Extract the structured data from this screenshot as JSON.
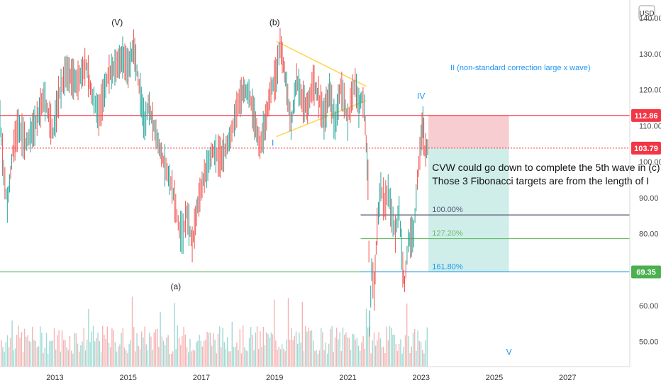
{
  "chart_data": {
    "type": "line",
    "currency": "USD",
    "x_axis": {
      "range": [
        2011.5,
        2028.7
      ],
      "ticks": [
        {
          "value": 2013,
          "label": "2013"
        },
        {
          "value": 2015,
          "label": "2015"
        },
        {
          "value": 2017,
          "label": "2017"
        },
        {
          "value": 2019,
          "label": "2019"
        },
        {
          "value": 2021,
          "label": "2021"
        },
        {
          "value": 2023,
          "label": "2023"
        },
        {
          "value": 2025,
          "label": "2025"
        },
        {
          "value": 2027,
          "label": "2027"
        }
      ]
    },
    "y_axis": {
      "range": [
        43,
        145
      ],
      "ticks": [
        {
          "value": 140,
          "label": "140.00"
        },
        {
          "value": 130,
          "label": "130.00"
        },
        {
          "value": 120,
          "label": "120.00"
        },
        {
          "value": 110,
          "label": "110.00"
        },
        {
          "value": 100,
          "label": "100.00"
        },
        {
          "value": 90,
          "label": "90.00"
        },
        {
          "value": 80,
          "label": "80.00"
        },
        {
          "value": 70,
          "label": "70.00"
        },
        {
          "value": 60,
          "label": "60.00"
        },
        {
          "value": 50,
          "label": "50.00"
        }
      ]
    },
    "price_path": [
      [
        2011.5,
        112
      ],
      [
        2011.6,
        97
      ],
      [
        2011.7,
        88
      ],
      [
        2011.85,
        103
      ],
      [
        2012.0,
        110
      ],
      [
        2012.2,
        105
      ],
      [
        2012.45,
        110
      ],
      [
        2012.7,
        118
      ],
      [
        2012.95,
        108
      ],
      [
        2013.1,
        118
      ],
      [
        2013.3,
        125
      ],
      [
        2013.6,
        122
      ],
      [
        2013.85,
        127
      ],
      [
        2014.0,
        119
      ],
      [
        2014.2,
        113
      ],
      [
        2014.45,
        124
      ],
      [
        2014.7,
        127
      ],
      [
        2014.85,
        129
      ],
      [
        2015.0,
        126
      ],
      [
        2015.15,
        132
      ],
      [
        2015.3,
        121
      ],
      [
        2015.45,
        110
      ],
      [
        2015.55,
        116
      ],
      [
        2015.7,
        110
      ],
      [
        2015.85,
        104
      ],
      [
        2016.0,
        99
      ],
      [
        2016.2,
        93
      ],
      [
        2016.4,
        81
      ],
      [
        2016.5,
        80
      ],
      [
        2016.6,
        86
      ],
      [
        2016.75,
        77
      ],
      [
        2016.9,
        88
      ],
      [
        2017.05,
        95
      ],
      [
        2017.3,
        103
      ],
      [
        2017.55,
        101
      ],
      [
        2017.8,
        107
      ],
      [
        2018.0,
        116
      ],
      [
        2018.15,
        120
      ],
      [
        2018.3,
        119
      ],
      [
        2018.45,
        112
      ],
      [
        2018.6,
        104
      ],
      [
        2018.75,
        111
      ],
      [
        2018.9,
        120
      ],
      [
        2019.05,
        124
      ],
      [
        2019.15,
        133
      ],
      [
        2019.3,
        123
      ],
      [
        2019.45,
        110
      ],
      [
        2019.6,
        123
      ],
      [
        2019.75,
        117
      ],
      [
        2019.9,
        115
      ],
      [
        2020.05,
        122
      ],
      [
        2020.2,
        118
      ],
      [
        2020.35,
        112
      ],
      [
        2020.5,
        120
      ],
      [
        2020.65,
        110
      ],
      [
        2020.8,
        121
      ],
      [
        2020.9,
        117
      ],
      [
        2021.0,
        111
      ],
      [
        2021.1,
        118
      ],
      [
        2021.2,
        122
      ],
      [
        2021.3,
        115
      ],
      [
        2021.38,
        118
      ],
      [
        2021.45,
        115
      ],
      [
        2021.5,
        105
      ],
      [
        2021.55,
        95
      ],
      [
        2021.6,
        55
      ],
      [
        2021.65,
        70
      ],
      [
        2021.72,
        64
      ],
      [
        2021.8,
        82
      ],
      [
        2021.9,
        93
      ],
      [
        2022.0,
        88
      ],
      [
        2022.1,
        92
      ],
      [
        2022.2,
        85
      ],
      [
        2022.3,
        80
      ],
      [
        2022.4,
        87
      ],
      [
        2022.5,
        70
      ],
      [
        2022.55,
        66
      ],
      [
        2022.65,
        78
      ],
      [
        2022.8,
        80
      ],
      [
        2022.9,
        95
      ],
      [
        2023.0,
        106
      ],
      [
        2023.05,
        111
      ],
      [
        2023.1,
        103
      ],
      [
        2023.18,
        104
      ]
    ],
    "horizontal_levels": [
      {
        "value": 112.86,
        "label": "112.86",
        "color": "#f23645"
      },
      {
        "value": 103.79,
        "label": "103.79",
        "color": "#f23645"
      },
      {
        "value": 69.35,
        "label": "69.35",
        "color": "#4caf50"
      }
    ],
    "fib_targets": [
      {
        "value": 85.2,
        "label": "100.00%",
        "color": "#555577"
      },
      {
        "value": 78.6,
        "label": "127.20%",
        "color": "#66bb6a"
      },
      {
        "value": 69.35,
        "label": "161.80%",
        "color": "#2196f3"
      }
    ],
    "position": {
      "entry": 103.79,
      "stop": 112.86,
      "target": 69.35,
      "risk_color": "#f8cdd1",
      "reward_color": "#cfeee9"
    },
    "triangle": {
      "color": "#ffd54f",
      "upper": [
        [
          2019.05,
          133.5
        ],
        [
          2021.5,
          121
        ]
      ],
      "lower": [
        [
          2019.05,
          107
        ],
        [
          2021.5,
          117
        ]
      ]
    },
    "wave_labels": [
      {
        "text": "(V)",
        "x": 2014.7,
        "y": 138,
        "color": "#222222"
      },
      {
        "text": "(b)",
        "x": 2019.0,
        "y": 138,
        "color": "#222222"
      },
      {
        "text": "I",
        "x": 2018.95,
        "y": 104.5,
        "color": "#2196f3"
      },
      {
        "text": "II (non-standard correction large x wave)",
        "x": 2023.8,
        "y": 125.5,
        "color": "#2196f3"
      },
      {
        "text": "IV",
        "x": 2023.0,
        "y": 117.5,
        "color": "#2196f3"
      },
      {
        "text": "(a)",
        "x": 2016.3,
        "y": 64.5,
        "color": "#222222"
      },
      {
        "text": "V",
        "x": 2025.4,
        "y": 46.3,
        "color": "#2196f3"
      }
    ],
    "annotation": [
      "CVW could go down to complete the 5th wave in (c)",
      "Those 3 Fibonacci targets are from the length of I"
    ],
    "volume": {
      "color_up": "#8fd3ca",
      "color_down": "#f4a7a7"
    }
  }
}
